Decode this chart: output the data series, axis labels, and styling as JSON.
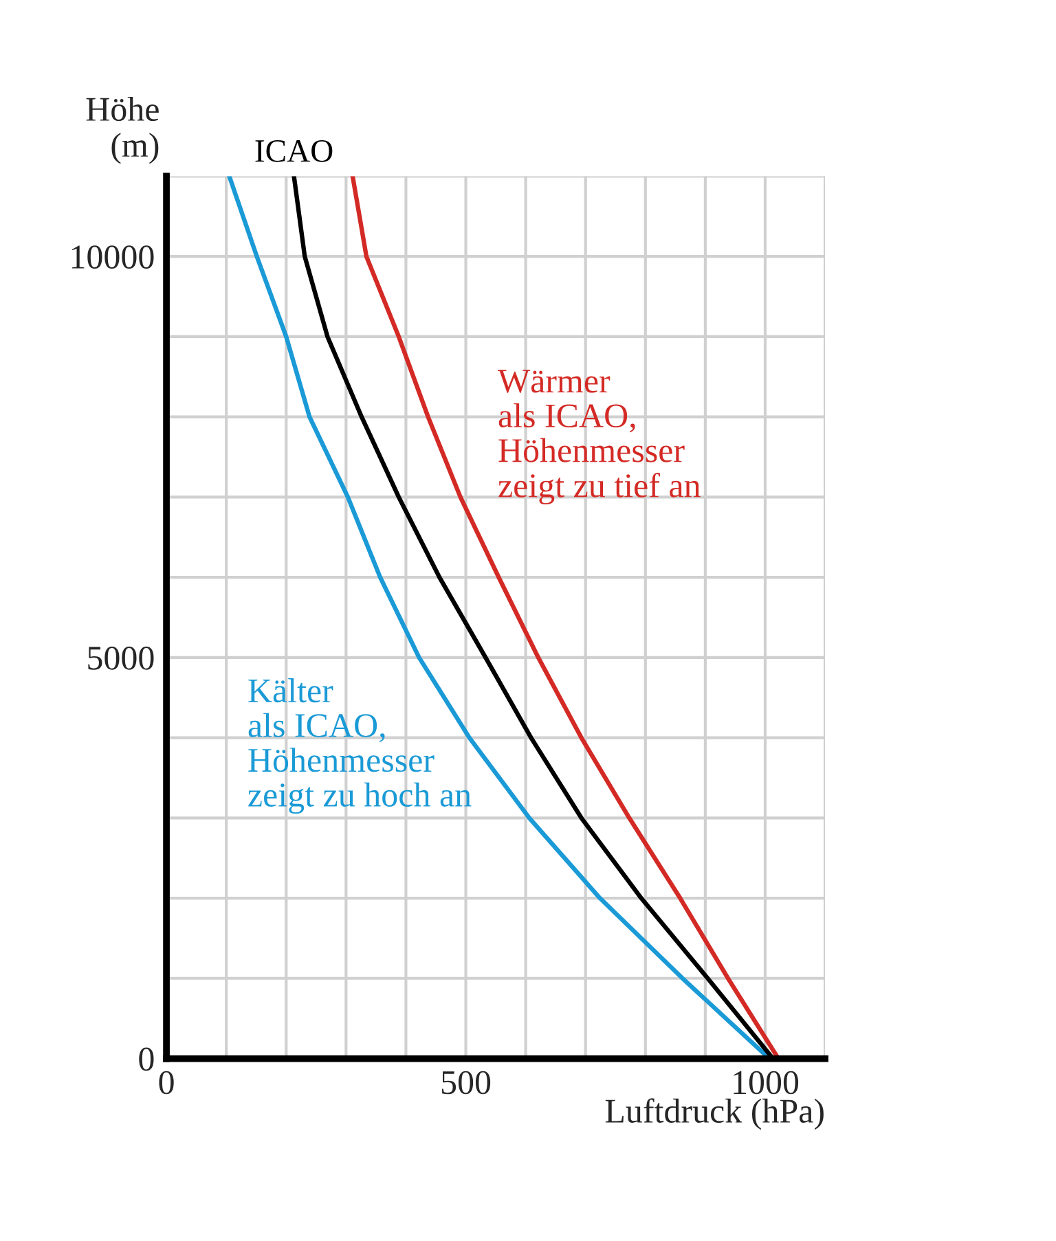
{
  "chart_data": {
    "type": "line",
    "xlabel": "Luftdruck (hPa)",
    "ylabel": "Höhe\n(m)",
    "xlim": [
      0,
      1100
    ],
    "ylim": [
      0,
      11000
    ],
    "xticks": [
      0,
      {
        "value": 100,
        "label": null
      },
      {
        "value": 200,
        "label": null
      },
      {
        "value": 300,
        "label": null
      },
      {
        "value": 400,
        "label": null
      },
      500,
      {
        "value": 600,
        "label": null
      },
      {
        "value": 700,
        "label": null
      },
      {
        "value": 800,
        "label": null
      },
      {
        "value": 900,
        "label": null
      },
      1000,
      {
        "value": 1100,
        "label": null
      }
    ],
    "yticks": [
      0,
      {
        "value": 1000,
        "label": null
      },
      {
        "value": 2000,
        "label": null
      },
      {
        "value": 3000,
        "label": null
      },
      {
        "value": 4000,
        "label": null
      },
      5000,
      {
        "value": 6000,
        "label": null
      },
      {
        "value": 7000,
        "label": null
      },
      {
        "value": 8000,
        "label": null
      },
      {
        "value": 9000,
        "label": null
      },
      10000,
      {
        "value": 11000,
        "label": null
      }
    ],
    "grid": true,
    "legend": false,
    "marker": "none",
    "line_style": "solid",
    "series": [
      {
        "name": "Kälter\nals ICAO,\nHöhenmesser\nzeigt zu hoch an",
        "color": "#1a9ad6",
        "x": [
          105,
          151,
          200,
          239,
          303,
          357,
          422,
          506,
          606,
          724,
          862,
          1007
        ],
        "values": [
          11000,
          10000,
          9000,
          8000,
          7000,
          6000,
          5000,
          4000,
          3000,
          2000,
          1000,
          0
        ]
      },
      {
        "name": "ICAO",
        "color": "#000000",
        "x": [
          213,
          231,
          269,
          326,
          388,
          456,
          533,
          609,
          693,
          793,
          904,
          1013
        ],
        "values": [
          11000,
          10000,
          9000,
          8000,
          7000,
          6000,
          5000,
          4000,
          3000,
          2000,
          1000,
          0
        ]
      },
      {
        "name": "Wärmer\nals ICAO,\nHöhenmesser\nzeigt zu tief an",
        "color": "#d42a25",
        "x": [
          311,
          334,
          388,
          437,
          491,
          555,
          621,
          693,
          773,
          858,
          938,
          1022
        ],
        "values": [
          11000,
          10000,
          9000,
          8000,
          7000,
          6000,
          5000,
          4000,
          3000,
          2000,
          1000,
          0
        ]
      }
    ]
  }
}
